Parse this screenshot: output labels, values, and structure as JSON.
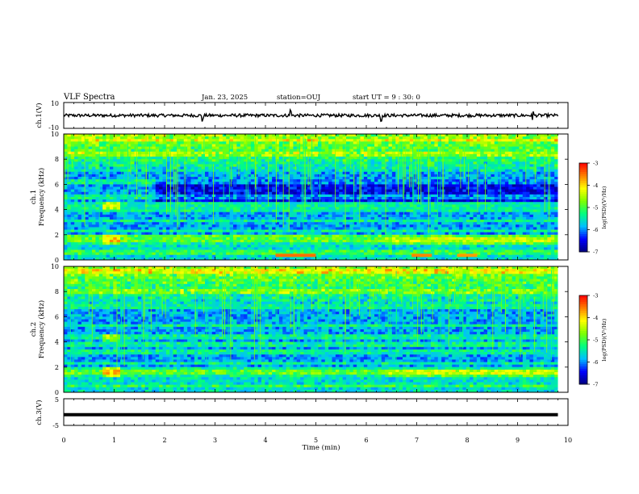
{
  "header": {
    "title": "VLF Spectra",
    "date": "Jan. 23, 2025",
    "station": "station=OUJ",
    "start": "start UT =  9 : 30: 0"
  },
  "colors": {
    "colormap": [
      "#00007f",
      "#0000ff",
      "#00bfff",
      "#00ff7f",
      "#7fff00",
      "#ffff00",
      "#ff7f00",
      "#ff0000",
      "#ff6ec7"
    ],
    "background": "#ffffff",
    "trace": "#000000"
  },
  "chart_data": [
    {
      "id": "ch1-waveform",
      "type": "line",
      "ylabel": "ch.1(V)",
      "ylim": [
        -10,
        10
      ],
      "yticks": [
        "10",
        "-10"
      ],
      "xlim": [
        0,
        10
      ],
      "description_values": {
        "mean": 0.0,
        "noise_amplitude": 1.2,
        "spikes_at_min": [
          2.75,
          4.5,
          6.3,
          9.3
        ]
      }
    },
    {
      "id": "ch1-spectrogram",
      "type": "heatmap",
      "ylabel": "ch.1\nFrequency (kHz)",
      "xlim": [
        0,
        10
      ],
      "ylim": [
        0,
        10
      ],
      "yticks": [
        "0",
        "2",
        "4",
        "6",
        "8",
        "10"
      ],
      "colorbar": {
        "label": "log(PSD)(V²/Hz)",
        "range": [
          -7,
          -3
        ],
        "ticks": [
          "-3",
          "-4",
          "-5",
          "-6",
          "-7"
        ]
      },
      "bands_khz": [
        0.6,
        1.5,
        1.8,
        2.3,
        3.1,
        4.0,
        4.4,
        5.0,
        6.2,
        8.4,
        9.5
      ],
      "bright_segments": [
        {
          "x": [
            4.2,
            5.0
          ],
          "y": 0.3,
          "level": -3.5
        },
        {
          "x": [
            6.9,
            7.3
          ],
          "y": 0.3,
          "level": -3.6
        },
        {
          "x": [
            7.8,
            8.2
          ],
          "y": 0.3,
          "level": -3.7
        }
      ]
    },
    {
      "id": "ch2-spectrogram",
      "type": "heatmap",
      "ylabel": "ch.2\nFrequency (kHz)",
      "xlim": [
        0,
        10
      ],
      "ylim": [
        0,
        10
      ],
      "yticks": [
        "0",
        "2",
        "4",
        "6",
        "8",
        "10"
      ],
      "colorbar": {
        "label": "log(PSD)(V²/Hz)",
        "range": [
          -7,
          -3
        ],
        "ticks": [
          "-3",
          "-4",
          "-5",
          "-6",
          "-7"
        ]
      },
      "bands_khz": [
        0.5,
        1.6,
        2.3,
        3.2,
        3.8,
        4.4,
        5.3,
        6.8,
        8.0,
        9.6
      ]
    },
    {
      "id": "ch3-waveform",
      "type": "line",
      "ylabel": "ch.3(V)",
      "ylim": [
        -5,
        5
      ],
      "yticks": [
        "5",
        "-5"
      ],
      "xlim": [
        0,
        10
      ],
      "description_values": {
        "mean": -1.0
      }
    }
  ],
  "xaxis": {
    "label": "Time (min)",
    "ticks": [
      "0",
      "1",
      "2",
      "3",
      "4",
      "5",
      "6",
      "7",
      "8",
      "9",
      "10"
    ]
  }
}
